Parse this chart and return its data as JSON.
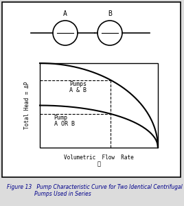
{
  "figure_caption_line1": "Figure 13   Pump Characteristic Curve for Two Identical Centrifugal",
  "figure_caption_line2": "Pumps Used in Series",
  "ylabel": "Total Head = ΔP",
  "xlabel_line1": "Volumetric  Flow  Rate",
  "xlabel_line2": "ṻ",
  "pump_A_label": "A",
  "pump_B_label": "B",
  "curve_AB_label_line1": "Pumps",
  "curve_AB_label_line2": "A & B",
  "curve_single_label_line1": "Pump",
  "curve_single_label_line2": "A OR B",
  "bg_color": "#dcdcdc",
  "curve_color": "#000000",
  "dashed_color": "#000000",
  "axis_box_color": "#000000",
  "font_color": "#000000",
  "caption_color": "#00008b",
  "outer_box_color": "#000000"
}
